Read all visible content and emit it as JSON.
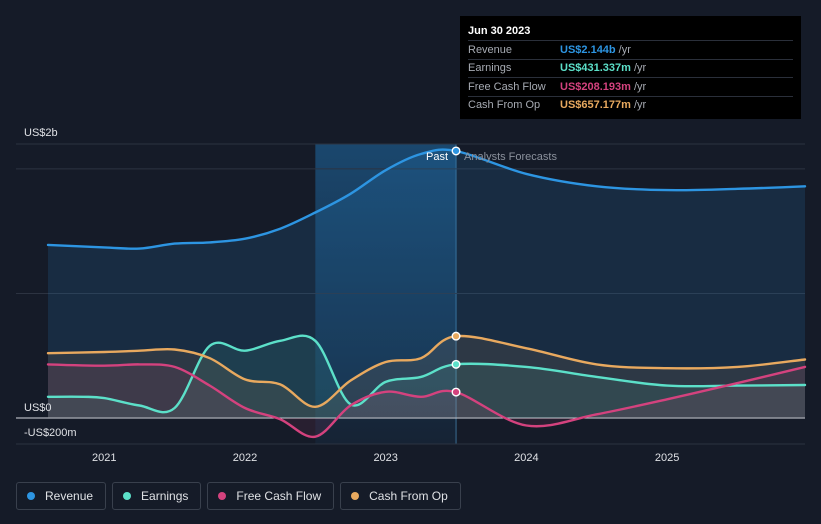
{
  "chart_data": {
    "type": "area",
    "title": "",
    "xlabel": "",
    "ylabel": "",
    "ylim": [
      -200,
      2200
    ],
    "xlim": [
      2020.6,
      2025.98
    ],
    "y_axis_labels": [
      {
        "value": 2000,
        "label": "US$2b"
      },
      {
        "value": 0,
        "label": "US$0"
      },
      {
        "value": -200,
        "label": "-US$200m"
      }
    ],
    "x_ticks": [
      {
        "value": 2021,
        "label": "2021"
      },
      {
        "value": 2022,
        "label": "2022"
      },
      {
        "value": 2023,
        "label": "2023"
      },
      {
        "value": 2024,
        "label": "2024"
      },
      {
        "value": 2025,
        "label": "2025"
      }
    ],
    "divider_x": 2023.5,
    "highlight_start_x": 2022.5,
    "period_labels": {
      "past": "Past",
      "forecast": "Analysts Forecasts"
    },
    "series": [
      {
        "name": "Revenue",
        "color": "#2d95e2",
        "points": [
          [
            2020.6,
            1390
          ],
          [
            2021.0,
            1370
          ],
          [
            2021.25,
            1360
          ],
          [
            2021.5,
            1400
          ],
          [
            2021.75,
            1410
          ],
          [
            2022.0,
            1440
          ],
          [
            2022.25,
            1520
          ],
          [
            2022.5,
            1650
          ],
          [
            2022.75,
            1800
          ],
          [
            2023.0,
            1990
          ],
          [
            2023.25,
            2120
          ],
          [
            2023.5,
            2144
          ]
        ],
        "forecast": [
          [
            2023.5,
            2144
          ],
          [
            2024.0,
            1960
          ],
          [
            2024.5,
            1860
          ],
          [
            2025.0,
            1830
          ],
          [
            2025.5,
            1840
          ],
          [
            2025.98,
            1860
          ]
        ]
      },
      {
        "name": "Earnings",
        "color": "#5ce0c9",
        "points": [
          [
            2020.6,
            170
          ],
          [
            2020.85,
            170
          ],
          [
            2021.0,
            160
          ],
          [
            2021.25,
            100
          ],
          [
            2021.5,
            80
          ],
          [
            2021.75,
            580
          ],
          [
            2022.0,
            540
          ],
          [
            2022.25,
            620
          ],
          [
            2022.5,
            620
          ],
          [
            2022.75,
            110
          ],
          [
            2023.0,
            290
          ],
          [
            2023.25,
            330
          ],
          [
            2023.5,
            431
          ]
        ],
        "forecast": [
          [
            2023.5,
            431
          ],
          [
            2024.0,
            410
          ],
          [
            2024.5,
            330
          ],
          [
            2025.0,
            260
          ],
          [
            2025.5,
            260
          ],
          [
            2025.98,
            265
          ]
        ]
      },
      {
        "name": "Free Cash Flow",
        "color": "#d4427e",
        "points": [
          [
            2020.6,
            430
          ],
          [
            2021.0,
            420
          ],
          [
            2021.25,
            430
          ],
          [
            2021.5,
            410
          ],
          [
            2021.75,
            260
          ],
          [
            2022.0,
            80
          ],
          [
            2022.25,
            -10
          ],
          [
            2022.5,
            -150
          ],
          [
            2022.75,
            100
          ],
          [
            2023.0,
            210
          ],
          [
            2023.25,
            170
          ],
          [
            2023.5,
            208
          ]
        ],
        "forecast": [
          [
            2023.5,
            208
          ],
          [
            2024.0,
            -60
          ],
          [
            2024.5,
            30
          ],
          [
            2025.0,
            150
          ],
          [
            2025.5,
            280
          ],
          [
            2025.98,
            410
          ]
        ]
      },
      {
        "name": "Cash From Op",
        "color": "#e8a95f",
        "points": [
          [
            2020.6,
            520
          ],
          [
            2021.0,
            530
          ],
          [
            2021.25,
            540
          ],
          [
            2021.5,
            550
          ],
          [
            2021.75,
            480
          ],
          [
            2022.0,
            310
          ],
          [
            2022.25,
            270
          ],
          [
            2022.5,
            90
          ],
          [
            2022.75,
            300
          ],
          [
            2023.0,
            450
          ],
          [
            2023.25,
            480
          ],
          [
            2023.5,
            657
          ]
        ],
        "forecast": [
          [
            2023.5,
            657
          ],
          [
            2024.0,
            560
          ],
          [
            2024.5,
            430
          ],
          [
            2025.0,
            400
          ],
          [
            2025.5,
            410
          ],
          [
            2025.98,
            470
          ]
        ]
      }
    ]
  },
  "tooltip": {
    "date": "Jun 30 2023",
    "rows": [
      {
        "label": "Revenue",
        "value": "US$2.144b",
        "unit": "/yr",
        "color": "#2d95e2"
      },
      {
        "label": "Earnings",
        "value": "US$431.337m",
        "unit": "/yr",
        "color": "#5ce0c9"
      },
      {
        "label": "Free Cash Flow",
        "value": "US$208.193m",
        "unit": "/yr",
        "color": "#d4427e"
      },
      {
        "label": "Cash From Op",
        "value": "US$657.177m",
        "unit": "/yr",
        "color": "#e8a95f"
      }
    ]
  },
  "legend": [
    {
      "label": "Revenue",
      "color": "#2d95e2"
    },
    {
      "label": "Earnings",
      "color": "#5ce0c9"
    },
    {
      "label": "Free Cash Flow",
      "color": "#d4427e"
    },
    {
      "label": "Cash From Op",
      "color": "#e8a95f"
    }
  ]
}
